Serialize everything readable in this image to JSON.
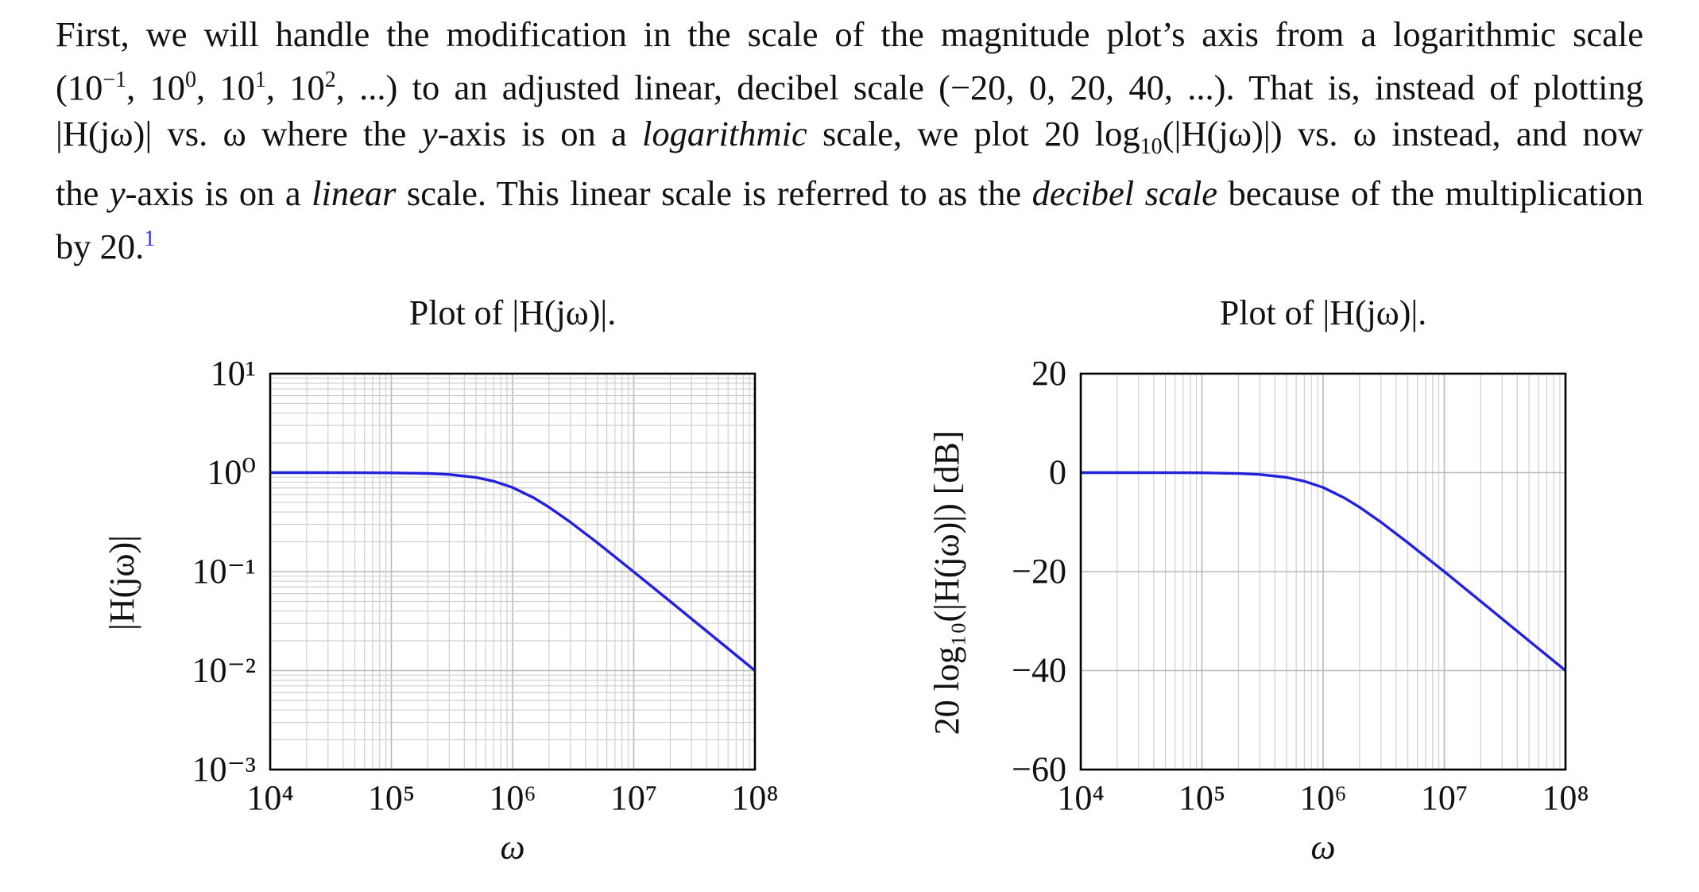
{
  "paragraph": {
    "line1": "First, we will handle the modification in the scale of the magnitude plot’s axis from a logarithmic scale",
    "line2_a": "(10",
    "line2_sup_a": "−1",
    "line2_b": ", 10",
    "line2_sup_b": "0",
    "line2_c": ", 10",
    "line2_sup_c": "1",
    "line2_d": ", 10",
    "line2_sup_d": "2",
    "line2_e": ", ...) to an adjusted linear, decibel scale (−20, 0, 20, 40, ...). That is, instead of plotting",
    "line3_a": "|H(jω)| vs. ω where the ",
    "line3_y": "y",
    "line3_b": "-axis is on a ",
    "line3_log": "logarithmic",
    "line3_c": " scale, we plot 20 log",
    "line3_sub": "10",
    "line3_d": "(|H(jω)|) vs. ω instead, and now",
    "line4_a": "the ",
    "line4_y": "y",
    "line4_b": "-axis is on a ",
    "line4_lin": "linear",
    "line4_c": " scale. This linear scale is referred to as the ",
    "line4_db": "decibel scale",
    "line4_d": " because of the multiplication",
    "line5": "by 20.",
    "footnote_mark": "1"
  },
  "chart_data": [
    {
      "type": "line",
      "title": "Plot of |H(jω)|.",
      "xlabel": "ω",
      "ylabel": "|H(jω)|",
      "xscale": "log",
      "yscale": "log",
      "xlim": [
        10000,
        100000000
      ],
      "ylim": [
        0.001,
        10
      ],
      "x_tick_labels": [
        "10⁴",
        "10⁵",
        "10⁶",
        "10⁷",
        "10⁸"
      ],
      "y_tick_labels": [
        "10⁻³",
        "10⁻²",
        "10⁻¹",
        "10⁰",
        "10¹"
      ],
      "grid": true,
      "series": [
        {
          "color": "#2222dd",
          "x": [
            10000,
            20000,
            50000,
            100000,
            200000,
            300000,
            500000,
            700000,
            1000000,
            1500000,
            2000000,
            3000000,
            5000000,
            7000000,
            10000000,
            20000000,
            50000000,
            100000000
          ],
          "y": [
            1.0,
            1.0,
            0.999,
            0.995,
            0.981,
            0.958,
            0.894,
            0.819,
            0.707,
            0.555,
            0.447,
            0.316,
            0.196,
            0.141,
            0.0995,
            0.05,
            0.02,
            0.01
          ]
        }
      ]
    },
    {
      "type": "line",
      "title": "Plot of |H(jω)|.",
      "xlabel": "ω",
      "ylabel": "20 log₁₀(|H(jω)|) [dB]",
      "xscale": "log",
      "yscale": "linear",
      "xlim": [
        10000,
        100000000
      ],
      "ylim": [
        -60,
        20
      ],
      "x_tick_labels": [
        "10⁴",
        "10⁵",
        "10⁶",
        "10⁷",
        "10⁸"
      ],
      "y_tick_labels": [
        "−60",
        "−40",
        "−20",
        "0",
        "20"
      ],
      "grid": true,
      "series": [
        {
          "color": "#2222dd",
          "x": [
            10000,
            20000,
            50000,
            100000,
            200000,
            300000,
            500000,
            700000,
            1000000,
            1500000,
            2000000,
            3000000,
            5000000,
            7000000,
            10000000,
            20000000,
            50000000,
            100000000
          ],
          "y": [
            0,
            0,
            -0.01,
            -0.04,
            -0.17,
            -0.37,
            -0.97,
            -1.73,
            -3.01,
            -5.12,
            -6.99,
            -10.0,
            -14.15,
            -17.0,
            -20.0,
            -26.0,
            -34.0,
            -40.0
          ]
        }
      ]
    }
  ]
}
